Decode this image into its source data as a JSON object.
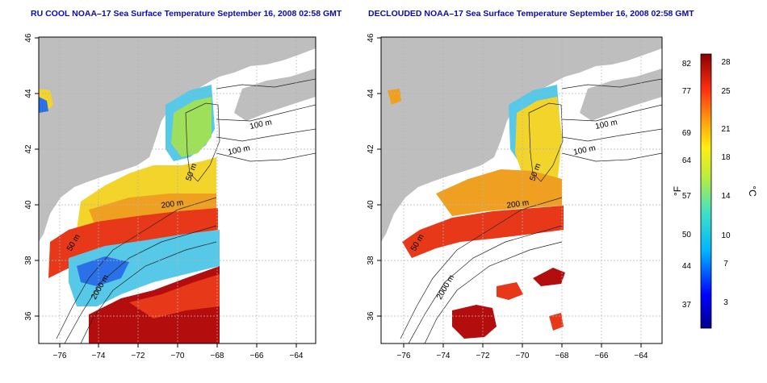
{
  "panels": [
    {
      "title": "RU COOL NOAA–17 Sea Surface Temperature September 16, 2008 02:58 GMT",
      "x_ticks": [
        "−76",
        "−74",
        "−72",
        "−70",
        "−68",
        "−66",
        "−64"
      ],
      "y_ticks": [
        "46",
        "44",
        "42",
        "40",
        "38",
        "36"
      ],
      "contour_labels": [
        "100 m",
        "100 m",
        "50 m",
        "200 m",
        "50 m",
        "2000 m"
      ]
    },
    {
      "title": "DECLOUDED NOAA–17 Sea Surface Temperature September 16, 2008 02:58 GMT",
      "x_ticks": [
        "−76",
        "−74",
        "−72",
        "−70",
        "−68",
        "−66",
        "−64"
      ],
      "y_ticks": [
        "46",
        "44",
        "42",
        "40",
        "38",
        "36"
      ],
      "contour_labels": [
        "100 m",
        "100 m",
        "50 m",
        "200 m",
        "50 m",
        "2000 m"
      ]
    }
  ],
  "colorbar": {
    "f_label": "°F",
    "c_label": "°C",
    "f_ticks": [
      "82",
      "77",
      "69",
      "64",
      "57",
      "50",
      "44",
      "37"
    ],
    "c_ticks": [
      "28",
      "25",
      "21",
      "18",
      "14",
      "10",
      "7",
      "3"
    ]
  },
  "colors": {
    "land": "#bebebe",
    "title": "#0a0ab4",
    "warm": "#e8381a",
    "hot": "#b30d0d",
    "mild": "#f2d42a",
    "cool": "#56c8e8"
  }
}
